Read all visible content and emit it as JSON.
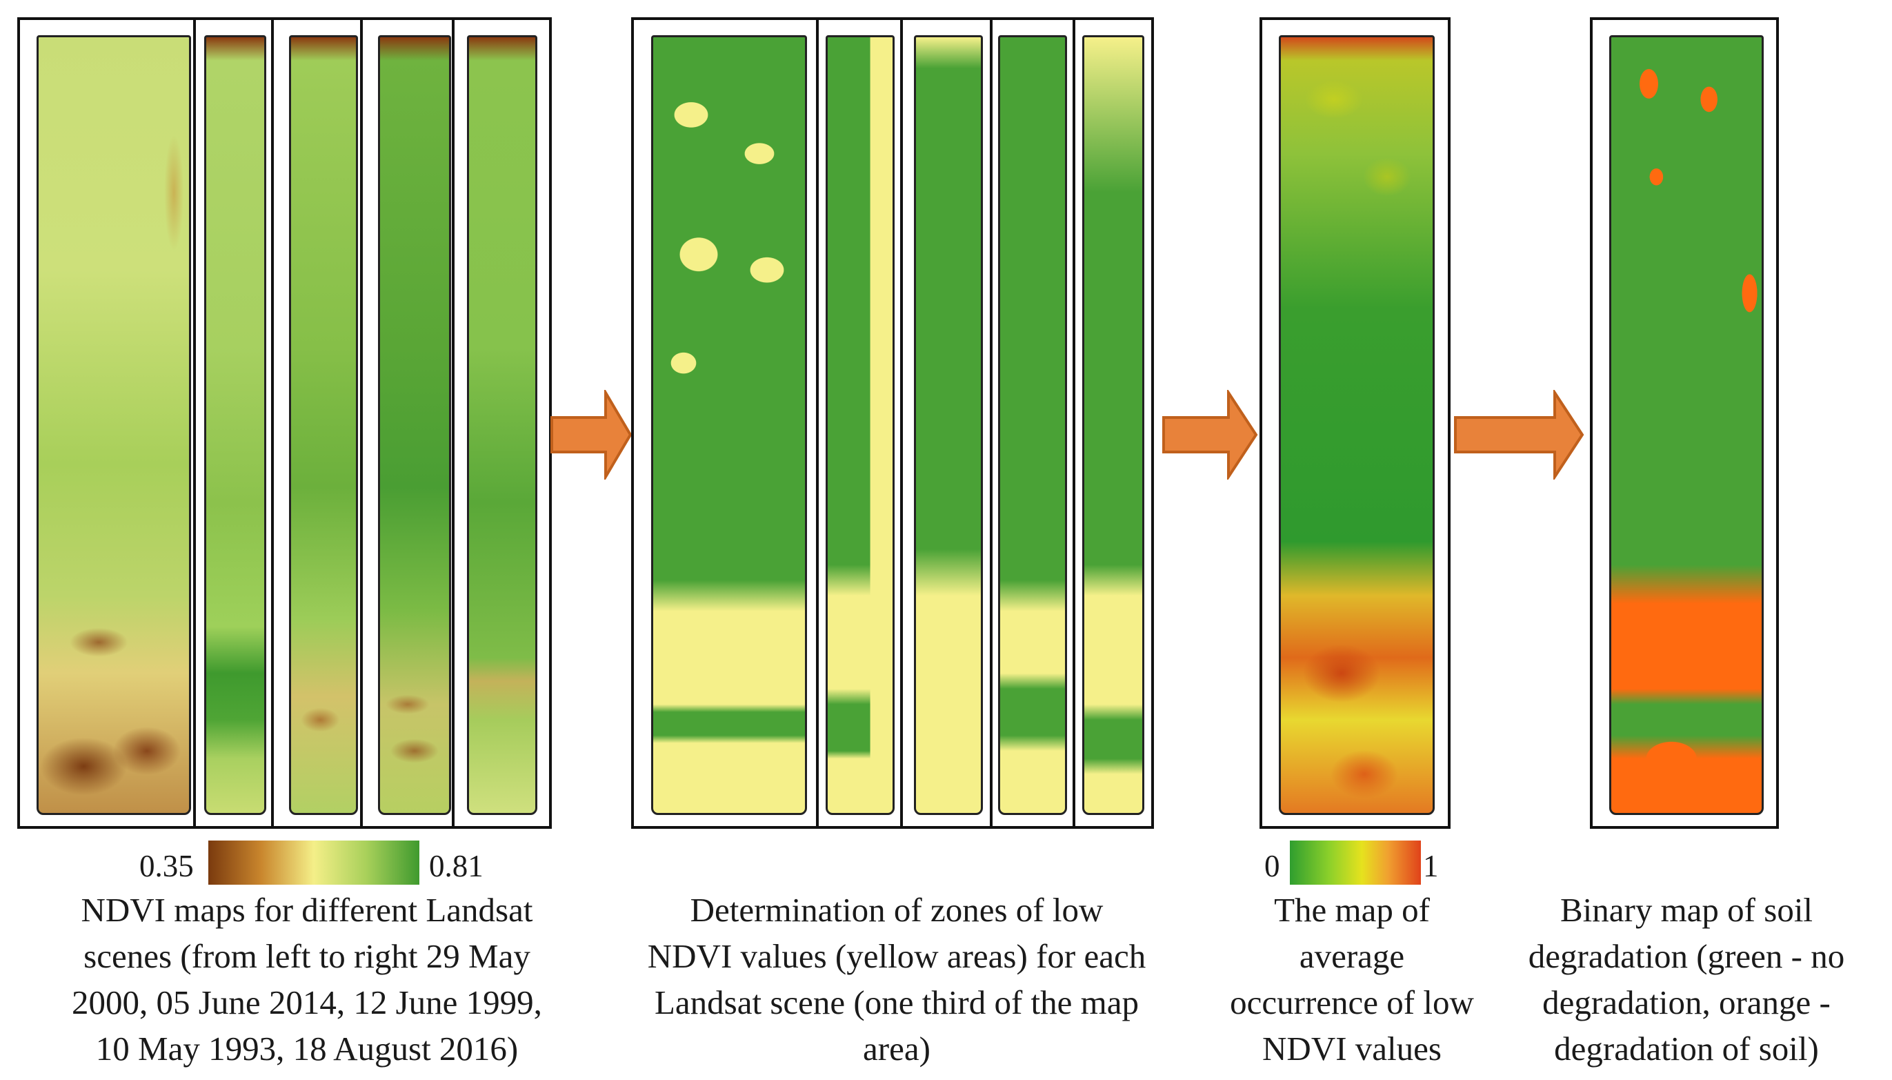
{
  "colors": {
    "ndvi_low": "#8b4513",
    "ndvi_mid": "#f4ef88",
    "ndvi_high": "#46a034",
    "zone_green": "#4aa236",
    "zone_yellow": "#f5f08a",
    "occ_low": "#2f9e2f",
    "occ_mid": "#e6e21e",
    "occ_high": "#e0421a",
    "binary_green": "#4aa236",
    "binary_orange": "#ff6a10",
    "arrow_fill": "#e8823a",
    "arrow_stroke": "#c0601c"
  },
  "panels": {
    "ndvi": {
      "scale_min": "0.35",
      "scale_max": "0.81",
      "caption": [
        "NDVI maps for different Landsat",
        "scenes (from left to right 29 May",
        "2000, 05 June 2014, 12 June 1999,",
        "10 May 1993, 18 August 2016)"
      ]
    },
    "zones": {
      "caption": [
        "Determination of zones of low",
        "NDVI values (yellow areas) for each",
        "Landsat scene (one third of the map",
        "area)"
      ]
    },
    "occurrence": {
      "scale_min": "0",
      "scale_max": "1",
      "caption": [
        "The map of",
        "average",
        "occurrence of low",
        "NDVI values"
      ]
    },
    "binary": {
      "caption": [
        "Binary map of soil",
        "degradation (green - no",
        "degradation, orange -",
        "degradation of soil)"
      ]
    }
  }
}
